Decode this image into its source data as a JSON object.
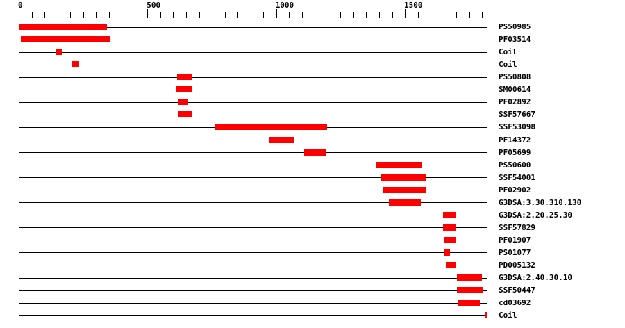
{
  "chart_data": {
    "type": "domain-architecture",
    "title": "",
    "style": {
      "background_color": "#ffffff",
      "bar_color": "#ff0000",
      "line_color": "#000000",
      "text_color": "#000000"
    },
    "axis": {
      "start": 0,
      "end": 1822,
      "minor_tick_interval": 50,
      "major_tick_interval": 500,
      "major_labels": [
        "0",
        "500",
        "1000",
        "1500"
      ]
    },
    "tracks": [
      {
        "label": "PS50985",
        "start": 1,
        "end": 343
      },
      {
        "label": "PF03514",
        "start": 8,
        "end": 356
      },
      {
        "label": "Coil",
        "start": 146,
        "end": 170
      },
      {
        "label": "Coil",
        "start": 205,
        "end": 235
      },
      {
        "label": "PS50808",
        "start": 615,
        "end": 671
      },
      {
        "label": "SM00614",
        "start": 612,
        "end": 672
      },
      {
        "label": "PF02892",
        "start": 618,
        "end": 658
      },
      {
        "label": "SSF57667",
        "start": 618,
        "end": 672
      },
      {
        "label": "SSF53098",
        "start": 761,
        "end": 1198
      },
      {
        "label": "PF14372",
        "start": 974,
        "end": 1071
      },
      {
        "label": "PF05699",
        "start": 1109,
        "end": 1192
      },
      {
        "label": "PS50600",
        "start": 1387,
        "end": 1567
      },
      {
        "label": "SSF54001",
        "start": 1408,
        "end": 1581
      },
      {
        "label": "PF02902",
        "start": 1414,
        "end": 1581
      },
      {
        "label": "G3DSA:3.30.310.130",
        "start": 1438,
        "end": 1562
      },
      {
        "label": "G3DSA:2.20.25.30",
        "start": 1648,
        "end": 1700
      },
      {
        "label": "SSF57829",
        "start": 1648,
        "end": 1700
      },
      {
        "label": "PF01907",
        "start": 1654,
        "end": 1700
      },
      {
        "label": "PS01077",
        "start": 1654,
        "end": 1675
      },
      {
        "label": "PD005132",
        "start": 1659,
        "end": 1700
      },
      {
        "label": "G3DSA:2.40.30.10",
        "start": 1702,
        "end": 1800
      },
      {
        "label": "SSF50447",
        "start": 1702,
        "end": 1802
      },
      {
        "label": "cd03692",
        "start": 1708,
        "end": 1791
      },
      {
        "label": "Coil",
        "start": 1812,
        "end": 1822
      }
    ]
  }
}
